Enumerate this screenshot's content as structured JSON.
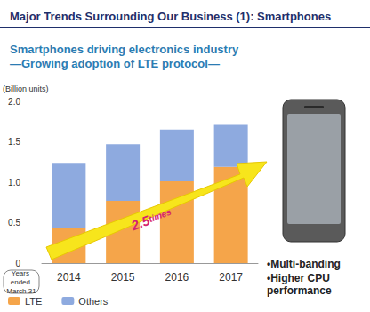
{
  "chart_data": {
    "type": "bar",
    "title": "Major Trends Surrounding Our Business (1): Smartphones",
    "subtitle": "Smartphones driving electronics industry\n—Growing adoption of LTE protocol—",
    "y_label": "(Billion units)",
    "x_label": "Years ended March 31",
    "categories": [
      "2014",
      "2015",
      "2016",
      "2017"
    ],
    "series": [
      {
        "name": "LTE",
        "color": "#f5a54a",
        "values": [
          0.44,
          0.77,
          1.01,
          1.19
        ]
      },
      {
        "name": "Others",
        "color": "#8eaadf",
        "values": [
          0.8,
          0.7,
          0.64,
          0.52
        ]
      }
    ],
    "ylim": [
      0,
      2
    ],
    "yticks": [
      0,
      0.5,
      {
        "value": 1,
        "label": "1.0"
      },
      1.5,
      {
        "value": 2,
        "label": "2.0"
      }
    ],
    "stacked": true,
    "grid": false,
    "legend": "bottom-left",
    "annotation": "2.5times",
    "features": [
      "•Multi-banding",
      "•Higher CPU performance"
    ]
  }
}
